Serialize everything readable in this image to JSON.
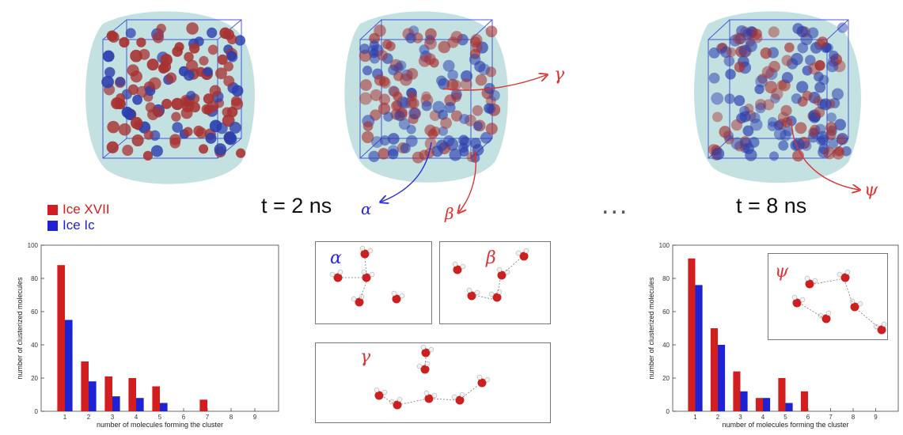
{
  "snapshots": {
    "left": {
      "caption": ""
    },
    "middle": {
      "caption": "t = 2 ns",
      "labels": [
        "α",
        "β",
        "γ"
      ]
    },
    "right": {
      "caption": "t = 8 ns",
      "labels": [
        "ψ"
      ]
    },
    "ellipsis": "..."
  },
  "legend": {
    "items": [
      {
        "name": "Ice XVII",
        "color": "#d21e1e"
      },
      {
        "name": "Ice Ic",
        "color": "#1e22d2"
      }
    ]
  },
  "insets": {
    "alpha": "α",
    "beta": "β",
    "gamma": "γ",
    "psi": "ψ"
  },
  "colors": {
    "ice_xvii": "#d21e1e",
    "ice_ic": "#1e22d2",
    "water_shell": "#b9dcdc",
    "arrow_blue": "#2a2ae0",
    "arrow_red": "#dd3333"
  },
  "chart_data": [
    {
      "type": "bar",
      "categories": [
        "1",
        "2",
        "3",
        "4",
        "5",
        "6",
        "7",
        "8",
        "9"
      ],
      "series": [
        {
          "name": "Ice XVII",
          "values": [
            88,
            30,
            21,
            20,
            15,
            0,
            7,
            0,
            0
          ]
        },
        {
          "name": "Ice Ic",
          "values": [
            55,
            18,
            9,
            8,
            5,
            0,
            0,
            0,
            0
          ]
        }
      ],
      "xlabel": "number of molecules forming the cluster",
      "ylabel": "number of clusterized molecules",
      "ylim": [
        0,
        100
      ],
      "yticks": [
        "0",
        "20",
        "40",
        "60",
        "80",
        "100"
      ],
      "grid": false
    },
    {
      "type": "bar",
      "categories": [
        "1",
        "2",
        "3",
        "4",
        "5",
        "6",
        "7",
        "8",
        "9"
      ],
      "series": [
        {
          "name": "Ice XVII",
          "values": [
            92,
            50,
            24,
            8,
            20,
            12,
            0,
            0,
            0
          ]
        },
        {
          "name": "Ice Ic",
          "values": [
            76,
            40,
            12,
            8,
            5,
            0,
            0,
            0,
            0
          ]
        }
      ],
      "xlabel": "number of molecules forming the cluster",
      "ylabel": "number of clusterized molecules",
      "ylim": [
        0,
        100
      ],
      "yticks": [
        "0",
        "20",
        "40",
        "60",
        "80",
        "100"
      ],
      "grid": false
    }
  ]
}
